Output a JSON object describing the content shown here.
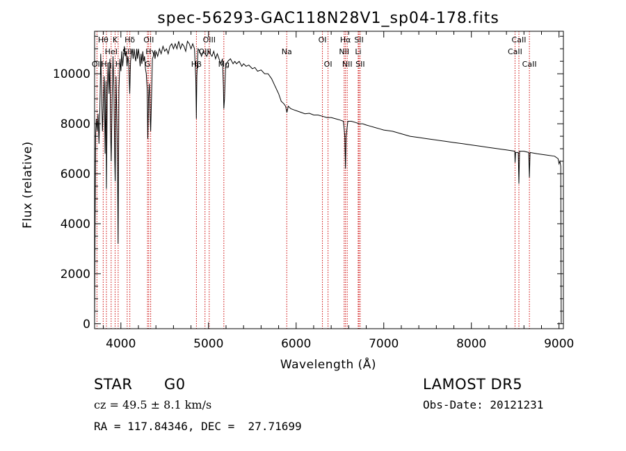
{
  "chart_data": {
    "type": "line",
    "title": "spec-56293-GAC118N28V1_sp04-178.fits",
    "xlabel": "Wavelength (Å)",
    "ylabel": "Flux (relative)",
    "xlim": [
      3700,
      9050
    ],
    "ylim": [
      -200,
      11700
    ],
    "xticks": [
      4000,
      5000,
      6000,
      7000,
      8000,
      9000
    ],
    "yticks": [
      0,
      2000,
      4000,
      6000,
      8000,
      10000
    ],
    "line_color": "#000000",
    "marker_color": "#cc0000",
    "series": [
      {
        "points": [
          [
            3700,
            0
          ],
          [
            3705,
            3500
          ],
          [
            3712,
            7600
          ],
          [
            3720,
            8200
          ],
          [
            3730,
            7700
          ],
          [
            3740,
            8400
          ],
          [
            3750,
            7200
          ],
          [
            3760,
            8600
          ],
          [
            3770,
            10800
          ],
          [
            3780,
            9300
          ],
          [
            3790,
            7700
          ],
          [
            3800,
            8800
          ],
          [
            3810,
            9900
          ],
          [
            3820,
            6800
          ],
          [
            3830,
            9700
          ],
          [
            3835,
            5400
          ],
          [
            3845,
            9400
          ],
          [
            3855,
            10400
          ],
          [
            3865,
            9200
          ],
          [
            3875,
            10600
          ],
          [
            3882,
            7800
          ],
          [
            3890,
            6500
          ],
          [
            3900,
            9000
          ],
          [
            3910,
            10700
          ],
          [
            3920,
            9500
          ],
          [
            3930,
            6500
          ],
          [
            3935,
            5700
          ],
          [
            3945,
            9900
          ],
          [
            3955,
            8000
          ],
          [
            3962,
            6200
          ],
          [
            3968,
            3200
          ],
          [
            3978,
            9400
          ],
          [
            3990,
            10600
          ],
          [
            4000,
            10100
          ],
          [
            4010,
            10900
          ],
          [
            4020,
            10300
          ],
          [
            4030,
            10700
          ],
          [
            4040,
            11100
          ],
          [
            4050,
            10700
          ],
          [
            4060,
            10900
          ],
          [
            4070,
            10300
          ],
          [
            4080,
            10700
          ],
          [
            4090,
            10400
          ],
          [
            4101,
            9200
          ],
          [
            4110,
            10500
          ],
          [
            4120,
            10800
          ],
          [
            4130,
            11000
          ],
          [
            4140,
            10600
          ],
          [
            4150,
            11000
          ],
          [
            4160,
            10700
          ],
          [
            4170,
            10500
          ],
          [
            4180,
            11000
          ],
          [
            4190,
            10600
          ],
          [
            4200,
            11000
          ],
          [
            4210,
            10700
          ],
          [
            4220,
            10300
          ],
          [
            4230,
            10800
          ],
          [
            4240,
            10400
          ],
          [
            4250,
            10900
          ],
          [
            4260,
            10500
          ],
          [
            4270,
            10700
          ],
          [
            4280,
            10200
          ],
          [
            4290,
            10000
          ],
          [
            4300,
            9400
          ],
          [
            4307,
            7400
          ],
          [
            4315,
            9000
          ],
          [
            4325,
            9600
          ],
          [
            4335,
            8200
          ],
          [
            4340,
            7700
          ],
          [
            4350,
            9100
          ],
          [
            4360,
            10600
          ],
          [
            4370,
            10700
          ],
          [
            4380,
            10900
          ],
          [
            4390,
            10600
          ],
          [
            4400,
            10900
          ],
          [
            4420,
            10700
          ],
          [
            4440,
            11000
          ],
          [
            4460,
            10800
          ],
          [
            4480,
            11100
          ],
          [
            4500,
            10900
          ],
          [
            4520,
            11000
          ],
          [
            4540,
            10800
          ],
          [
            4560,
            11100
          ],
          [
            4580,
            11200
          ],
          [
            4600,
            11000
          ],
          [
            4620,
            11200
          ],
          [
            4640,
            11000
          ],
          [
            4660,
            11300
          ],
          [
            4680,
            11000
          ],
          [
            4700,
            11200
          ],
          [
            4720,
            11100
          ],
          [
            4740,
            10900
          ],
          [
            4760,
            11300
          ],
          [
            4780,
            11200
          ],
          [
            4800,
            11000
          ],
          [
            4820,
            11200
          ],
          [
            4840,
            11000
          ],
          [
            4855,
            9800
          ],
          [
            4861,
            8200
          ],
          [
            4867,
            9900
          ],
          [
            4880,
            11000
          ],
          [
            4900,
            10900
          ],
          [
            4920,
            10700
          ],
          [
            4940,
            10900
          ],
          [
            4960,
            10800
          ],
          [
            4980,
            10700
          ],
          [
            5000,
            10900
          ],
          [
            5020,
            10800
          ],
          [
            5040,
            10700
          ],
          [
            5060,
            10900
          ],
          [
            5080,
            10600
          ],
          [
            5100,
            10800
          ],
          [
            5120,
            10600
          ],
          [
            5140,
            10400
          ],
          [
            5160,
            10600
          ],
          [
            5170,
            9500
          ],
          [
            5175,
            8600
          ],
          [
            5183,
            9000
          ],
          [
            5195,
            10300
          ],
          [
            5220,
            10500
          ],
          [
            5250,
            10600
          ],
          [
            5280,
            10400
          ],
          [
            5300,
            10500
          ],
          [
            5320,
            10400
          ],
          [
            5350,
            10500
          ],
          [
            5380,
            10300
          ],
          [
            5400,
            10400
          ],
          [
            5430,
            10300
          ],
          [
            5460,
            10350
          ],
          [
            5500,
            10200
          ],
          [
            5530,
            10250
          ],
          [
            5560,
            10100
          ],
          [
            5600,
            10150
          ],
          [
            5640,
            10000
          ],
          [
            5680,
            10000
          ],
          [
            5720,
            9800
          ],
          [
            5760,
            9500
          ],
          [
            5800,
            9200
          ],
          [
            5830,
            8900
          ],
          [
            5860,
            8800
          ],
          [
            5880,
            8700
          ],
          [
            5895,
            8450
          ],
          [
            5910,
            8700
          ],
          [
            5940,
            8600
          ],
          [
            5980,
            8550
          ],
          [
            6020,
            8500
          ],
          [
            6060,
            8450
          ],
          [
            6100,
            8400
          ],
          [
            6150,
            8420
          ],
          [
            6200,
            8350
          ],
          [
            6250,
            8350
          ],
          [
            6300,
            8300
          ],
          [
            6350,
            8250
          ],
          [
            6400,
            8250
          ],
          [
            6450,
            8200
          ],
          [
            6500,
            8150
          ],
          [
            6540,
            8100
          ],
          [
            6555,
            7500
          ],
          [
            6563,
            6200
          ],
          [
            6570,
            7500
          ],
          [
            6590,
            8100
          ],
          [
            6630,
            8100
          ],
          [
            6680,
            8050
          ],
          [
            6720,
            8000
          ],
          [
            6760,
            8000
          ],
          [
            6800,
            7950
          ],
          [
            6850,
            7900
          ],
          [
            6900,
            7850
          ],
          [
            6950,
            7800
          ],
          [
            7000,
            7750
          ],
          [
            7100,
            7700
          ],
          [
            7200,
            7600
          ],
          [
            7300,
            7500
          ],
          [
            7400,
            7450
          ],
          [
            7500,
            7400
          ],
          [
            7600,
            7350
          ],
          [
            7700,
            7300
          ],
          [
            7800,
            7250
          ],
          [
            7900,
            7200
          ],
          [
            8000,
            7150
          ],
          [
            8100,
            7100
          ],
          [
            8200,
            7050
          ],
          [
            8300,
            7000
          ],
          [
            8400,
            6950
          ],
          [
            8495,
            6900
          ],
          [
            8498,
            6450
          ],
          [
            8505,
            6850
          ],
          [
            8535,
            6850
          ],
          [
            8542,
            5600
          ],
          [
            8550,
            6900
          ],
          [
            8600,
            6900
          ],
          [
            8655,
            6850
          ],
          [
            8662,
            5850
          ],
          [
            8670,
            6850
          ],
          [
            8750,
            6800
          ],
          [
            8850,
            6750
          ],
          [
            8950,
            6700
          ],
          [
            8990,
            6600
          ],
          [
            9000,
            6400
          ],
          [
            9010,
            6500
          ],
          [
            9020,
            6300
          ],
          [
            9025,
            0
          ]
        ]
      }
    ],
    "lines": [
      {
        "x": 3727,
        "labels": [
          "OII"
        ],
        "rows": [
          3
        ]
      },
      {
        "x": 3798,
        "labels": [
          "Hθ"
        ],
        "rows": [
          1
        ]
      },
      {
        "x": 3835,
        "labels": [
          "Hη"
        ],
        "rows": [
          3
        ]
      },
      {
        "x": 3889,
        "labels": [
          "HeI"
        ],
        "rows": [
          2
        ]
      },
      {
        "x": 3934,
        "labels": [
          "K"
        ],
        "rows": [
          1
        ]
      },
      {
        "x": 3969,
        "labels": [
          "H"
        ],
        "rows": [
          3
        ]
      },
      {
        "x": 4102,
        "labels": [
          "Hδ"
        ],
        "rows": [
          1
        ]
      },
      {
        "x": 4072,
        "labels": [
          "SII"
        ],
        "rows": [
          2
        ]
      },
      {
        "x": 4304,
        "labels": [
          "G"
        ],
        "rows": [
          3
        ]
      },
      {
        "x": 4318,
        "labels": [
          "OII"
        ],
        "rows": [
          1
        ]
      },
      {
        "x": 4340,
        "labels": [
          "Hγ"
        ],
        "rows": [
          2
        ]
      },
      {
        "x": 4862,
        "labels": [
          "Hβ"
        ],
        "rows": [
          3
        ]
      },
      {
        "x": 4960,
        "labels": [
          "OIII"
        ],
        "rows": [
          2
        ]
      },
      {
        "x": 5008,
        "labels": [
          "OIII"
        ],
        "rows": [
          1
        ]
      },
      {
        "x": 5175,
        "labels": [
          "Mg"
        ],
        "rows": [
          3
        ]
      },
      {
        "x": 5893,
        "labels": [
          "Na"
        ],
        "rows": [
          2
        ]
      },
      {
        "x": 6300,
        "labels": [
          "OI"
        ],
        "rows": [
          1
        ]
      },
      {
        "x": 6364,
        "labels": [
          "OI"
        ],
        "rows": [
          3
        ]
      },
      {
        "x": 6548,
        "labels": [
          "NII"
        ],
        "rows": [
          2
        ]
      },
      {
        "x": 6563,
        "labels": [
          "Hα"
        ],
        "rows": [
          1
        ]
      },
      {
        "x": 6583,
        "labels": [
          "NII"
        ],
        "rows": [
          3
        ]
      },
      {
        "x": 6708,
        "labels": [
          "Li"
        ],
        "rows": [
          2
        ]
      },
      {
        "x": 6717,
        "labels": [
          "SII"
        ],
        "rows": [
          1
        ]
      },
      {
        "x": 6731,
        "labels": [
          "SII"
        ],
        "rows": [
          3
        ]
      },
      {
        "x": 8498,
        "labels": [
          "CaII"
        ],
        "rows": [
          2
        ]
      },
      {
        "x": 8542,
        "labels": [
          "CaII"
        ],
        "rows": [
          1
        ]
      },
      {
        "x": 8662,
        "labels": [
          "CaII"
        ],
        "rows": [
          3
        ]
      }
    ]
  },
  "info": {
    "class": "STAR",
    "subclass": "G0",
    "cz": "cz = 49.5 ± 8.1 km/s",
    "coords": "RA = 117.84346, DEC =  27.71699",
    "survey": "LAMOST DR5",
    "obsdate": "Obs-Date: 20121231"
  }
}
